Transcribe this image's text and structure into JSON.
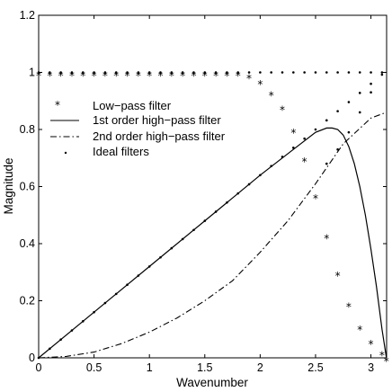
{
  "chart_data": {
    "type": "line",
    "title": "",
    "xlabel": "Wavenumber",
    "ylabel": "Magnitude",
    "xlim": [
      0,
      3.14159
    ],
    "ylim": [
      0,
      1.2
    ],
    "xticks": [
      0,
      0.5,
      1,
      1.5,
      2,
      2.5,
      3
    ],
    "xtick_labels": [
      "0",
      "0.5",
      "1",
      "1.5",
      "2",
      "2.5",
      "3"
    ],
    "yticks": [
      0,
      0.2,
      0.4,
      0.6,
      0.8,
      1,
      1.2
    ],
    "ytick_labels": [
      "0",
      "0.2",
      "0.4",
      "0.6",
      "0.8",
      "1",
      "1.2"
    ],
    "grid": false,
    "legend_position": "center-left",
    "series": [
      {
        "name": "Low−pass filter",
        "style": "markers-star",
        "x": [
          0,
          0.1,
          0.2,
          0.3,
          0.4,
          0.5,
          0.6,
          0.7,
          0.8,
          0.9,
          1.0,
          1.1,
          1.2,
          1.3,
          1.4,
          1.5,
          1.6,
          1.7,
          1.8,
          1.9,
          2.0,
          2.1,
          2.2,
          2.3,
          2.4,
          2.5,
          2.6,
          2.7,
          2.8,
          2.9,
          3.0,
          3.1,
          3.14
        ],
        "y": [
          1,
          1,
          1,
          1,
          1,
          1,
          1,
          1,
          1,
          1,
          1,
          1,
          1,
          1,
          1,
          1,
          1,
          1,
          1,
          0.99,
          0.97,
          0.93,
          0.88,
          0.8,
          0.7,
          0.57,
          0.43,
          0.3,
          0.19,
          0.11,
          0.06,
          0.02,
          0
        ]
      },
      {
        "name": "1st order high−pass filter",
        "style": "solid",
        "x": [
          0,
          0.5,
          1.0,
          1.5,
          2.0,
          2.3,
          2.5,
          2.6,
          2.65,
          2.7,
          2.75,
          2.8,
          2.85,
          2.9,
          2.95,
          3.0,
          3.05,
          3.1,
          3.14
        ],
        "y": [
          0,
          0.16,
          0.32,
          0.48,
          0.64,
          0.73,
          0.79,
          0.805,
          0.805,
          0.8,
          0.78,
          0.74,
          0.68,
          0.6,
          0.5,
          0.38,
          0.25,
          0.1,
          0
        ]
      },
      {
        "name": "2nd order high−pass filter",
        "style": "dashdot",
        "x": [
          0,
          0.25,
          0.5,
          0.75,
          1.0,
          1.25,
          1.5,
          1.75,
          2.0,
          2.25,
          2.5,
          2.75,
          3.0,
          3.14
        ],
        "y": [
          0,
          0.005,
          0.02,
          0.05,
          0.09,
          0.14,
          0.2,
          0.27,
          0.37,
          0.48,
          0.61,
          0.75,
          0.84,
          0.86
        ]
      },
      {
        "name": "Ideal filters",
        "style": "markers-dot",
        "x": [
          0,
          0.1,
          0.2,
          0.3,
          0.4,
          0.5,
          0.6,
          0.7,
          0.8,
          0.9,
          1.0,
          1.1,
          1.2,
          1.3,
          1.4,
          1.5,
          1.6,
          1.7,
          1.8,
          1.9,
          2.0,
          2.1,
          2.2,
          2.3,
          2.4,
          2.5,
          2.6,
          2.7,
          2.8,
          2.9,
          3.0,
          3.1
        ],
        "y": [
          0,
          0.032,
          0.064,
          0.096,
          0.128,
          0.16,
          0.192,
          0.224,
          0.256,
          0.288,
          0.32,
          0.352,
          0.384,
          0.416,
          0.448,
          0.48,
          0.512,
          0.544,
          0.576,
          0.608,
          0.64,
          0.672,
          0.704,
          0.736,
          0.768,
          0.8,
          0.832,
          0.864,
          0.896,
          0.928,
          0.96,
          0.992
        ],
        "x2": [
          0,
          0.1,
          0.2,
          0.3,
          0.4,
          0.5,
          0.6,
          0.7,
          0.8,
          0.9,
          1.0,
          1.1,
          1.2,
          1.3,
          1.4,
          1.5,
          1.6,
          1.7,
          1.8,
          1.9,
          2.0,
          2.1,
          2.2,
          2.3,
          2.4,
          2.5,
          2.6,
          2.7,
          2.8,
          2.9,
          3.0,
          3.1
        ],
        "y2": [
          1,
          1,
          1,
          1,
          1,
          1,
          1,
          1,
          1,
          1,
          1,
          1,
          1,
          1,
          1,
          1,
          1,
          1,
          1,
          1,
          1,
          1,
          1,
          1,
          1,
          1,
          1,
          1,
          1,
          1,
          1,
          1
        ],
        "x3": [
          2.6,
          2.7,
          2.8,
          2.9,
          3.0
        ],
        "y3": [
          0.68,
          0.73,
          0.79,
          0.86,
          0.93
        ]
      }
    ],
    "legend": [
      {
        "label": "Low−pass filter",
        "symbol": "star"
      },
      {
        "label": "1st order high−pass filter",
        "symbol": "solid"
      },
      {
        "label": "2nd order high−pass filter",
        "symbol": "dashdot"
      },
      {
        "label": "Ideal filters",
        "symbol": "dot"
      }
    ]
  }
}
